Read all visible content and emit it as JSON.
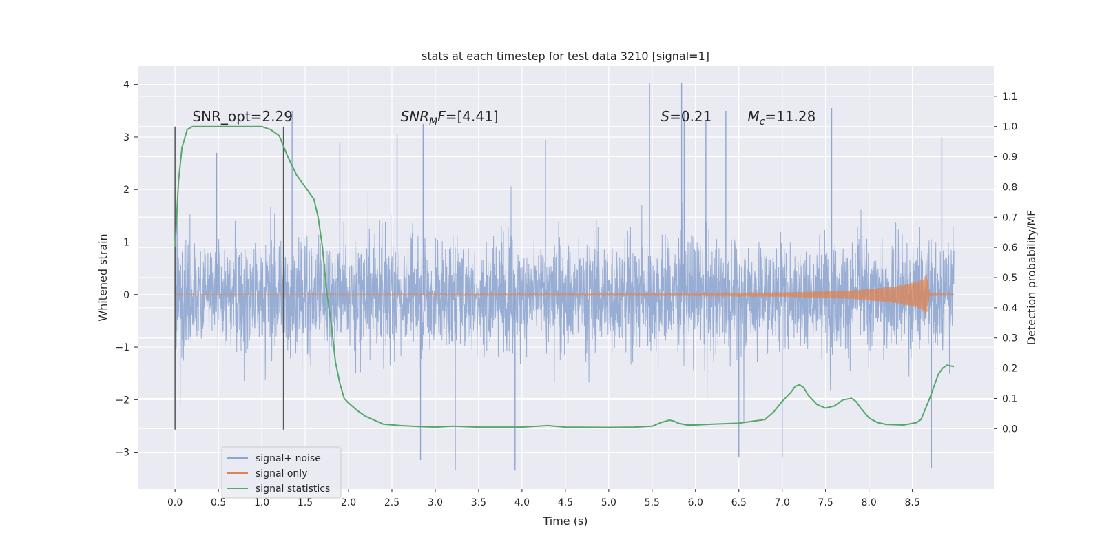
{
  "chart_data": {
    "type": "line",
    "title": "stats at each timestep for test data 3210 [signal=1]",
    "xlabel": "Time (s)",
    "ylabel_left": "Whitened strain",
    "ylabel_right": "Detection probability/MF",
    "xlim": [
      -0.43,
      9.44
    ],
    "ylim_left": [
      -3.7,
      4.35
    ],
    "ylim_right": [
      -0.2,
      1.2
    ],
    "x_ticks": [
      0.0,
      0.5,
      1.0,
      1.5,
      2.0,
      2.5,
      3.0,
      3.5,
      4.0,
      4.5,
      5.0,
      5.5,
      6.0,
      6.5,
      7.0,
      7.5,
      8.0,
      8.5
    ],
    "x_tick_labels": [
      "0.0",
      "0.5",
      "1.0",
      "1.5",
      "2.0",
      "2.5",
      "3.0",
      "3.5",
      "4.0",
      "4.5",
      "5.0",
      "5.5",
      "6.0",
      "6.5",
      "7.0",
      "7.5",
      "8.0",
      "8.5"
    ],
    "y_left_ticks": [
      -3,
      -2,
      -1,
      0,
      1,
      2,
      3,
      4
    ],
    "y_left_tick_labels": [
      "−3",
      "−2",
      "−1",
      "0",
      "1",
      "2",
      "3",
      "4"
    ],
    "y_right_ticks": [
      0.0,
      0.1,
      0.2,
      0.3,
      0.4,
      0.5,
      0.6,
      0.7,
      0.8,
      0.9,
      1.0,
      1.1
    ],
    "y_right_tick_labels": [
      "0.0",
      "0.1",
      "0.2",
      "0.3",
      "0.4",
      "0.5",
      "0.6",
      "0.7",
      "0.8",
      "0.9",
      "1.0",
      "1.1"
    ],
    "grid": true,
    "legend_position": "lower-left",
    "colors": {
      "signal_noise": "#8fa6cf",
      "signal_only": "#dd8452",
      "statistics": "#55a868",
      "background": "#eaeaf2",
      "grid": "#ffffff",
      "vline": "#555555"
    },
    "series": [
      {
        "name": "signal+ noise",
        "axis": "left",
        "x_range": [
          0.0,
          8.98
        ],
        "typical_range": [
          -0.85,
          0.92
        ],
        "extremes_estimated": [
          {
            "x": 0.0,
            "y": 2.0
          },
          {
            "x": 0.48,
            "y": 2.7
          },
          {
            "x": 1.35,
            "y": 3.5
          },
          {
            "x": 1.9,
            "y": 2.9
          },
          {
            "x": 2.56,
            "y": 3.05
          },
          {
            "x": 2.86,
            "y": 3.25
          },
          {
            "x": 4.27,
            "y": 2.95
          },
          {
            "x": 5.47,
            "y": 4.02
          },
          {
            "x": 5.84,
            "y": 4.02
          },
          {
            "x": 5.87,
            "y": 3.5
          },
          {
            "x": 6.12,
            "y": 3.3
          },
          {
            "x": 6.35,
            "y": 3.5
          },
          {
            "x": 7.57,
            "y": 3.55
          },
          {
            "x": 8.84,
            "y": 3.0
          },
          {
            "x": 2.83,
            "y": -3.15
          },
          {
            "x": 3.23,
            "y": -3.35
          },
          {
            "x": 3.92,
            "y": -3.35
          },
          {
            "x": 6.5,
            "y": -3.1
          },
          {
            "x": 7.0,
            "y": -3.1
          },
          {
            "x": 8.72,
            "y": -3.3
          }
        ]
      },
      {
        "name": "signal only",
        "axis": "left",
        "x_range": [
          0.0,
          8.98
        ],
        "envelope": [
          [
            0.0,
            0.01
          ],
          [
            6.0,
            0.02
          ],
          [
            7.0,
            0.04
          ],
          [
            7.8,
            0.08
          ],
          [
            8.3,
            0.16
          ],
          [
            8.55,
            0.25
          ],
          [
            8.64,
            0.32
          ],
          [
            8.66,
            0.45
          ],
          [
            8.7,
            0.02
          ],
          [
            8.98,
            0.01
          ]
        ]
      },
      {
        "name": "signal statistics",
        "axis": "right",
        "x": [
          0.0,
          0.04,
          0.08,
          0.14,
          0.2,
          0.3,
          0.5,
          0.8,
          1.0,
          1.1,
          1.2,
          1.3,
          1.4,
          1.5,
          1.6,
          1.65,
          1.7,
          1.75,
          1.8,
          1.85,
          1.9,
          1.95,
          2.0,
          2.1,
          2.2,
          2.4,
          2.6,
          2.8,
          3.0,
          3.2,
          3.5,
          4.0,
          4.3,
          4.5,
          5.0,
          5.3,
          5.5,
          5.6,
          5.7,
          5.75,
          5.8,
          5.9,
          6.0,
          6.2,
          6.5,
          6.8,
          6.9,
          7.0,
          7.1,
          7.15,
          7.2,
          7.25,
          7.3,
          7.4,
          7.5,
          7.6,
          7.7,
          7.8,
          7.85,
          7.9,
          8.0,
          8.1,
          8.2,
          8.4,
          8.55,
          8.6,
          8.7,
          8.8,
          8.85,
          8.9,
          8.98
        ],
        "y": [
          0.6,
          0.82,
          0.93,
          0.99,
          1.0,
          1.0,
          1.0,
          1.0,
          1.0,
          0.99,
          0.97,
          0.9,
          0.84,
          0.8,
          0.76,
          0.7,
          0.6,
          0.45,
          0.35,
          0.22,
          0.15,
          0.1,
          0.085,
          0.06,
          0.04,
          0.015,
          0.01,
          0.007,
          0.005,
          0.008,
          0.005,
          0.005,
          0.01,
          0.005,
          0.004,
          0.005,
          0.008,
          0.02,
          0.028,
          0.025,
          0.018,
          0.012,
          0.012,
          0.015,
          0.018,
          0.03,
          0.055,
          0.09,
          0.12,
          0.14,
          0.145,
          0.135,
          0.11,
          0.08,
          0.068,
          0.075,
          0.095,
          0.1,
          0.09,
          0.07,
          0.035,
          0.02,
          0.014,
          0.012,
          0.02,
          0.03,
          0.1,
          0.18,
          0.2,
          0.21,
          0.205
        ]
      }
    ],
    "vertical_lines": [
      0.0,
      1.25
    ],
    "annotations": [
      {
        "x": 0.2,
        "y": 3.3,
        "parts": [
          {
            "text": "SNR_opt=2.29"
          }
        ]
      },
      {
        "x": 2.6,
        "y": 3.3,
        "parts": [
          {
            "text": "SNR",
            "style": "italic"
          },
          {
            "text": "M",
            "style": "italic-sub"
          },
          {
            "text": "F",
            "style": "italic"
          },
          {
            "text": "=[4.41]"
          }
        ]
      },
      {
        "x": 5.6,
        "y": 3.3,
        "parts": [
          {
            "text": "S",
            "style": "italic"
          },
          {
            "text": "=0.21"
          }
        ]
      },
      {
        "x": 6.6,
        "y": 3.3,
        "parts": [
          {
            "text": "M",
            "style": "italic"
          },
          {
            "text": "c",
            "style": "italic-sub"
          },
          {
            "text": "=11.28"
          }
        ]
      }
    ]
  }
}
